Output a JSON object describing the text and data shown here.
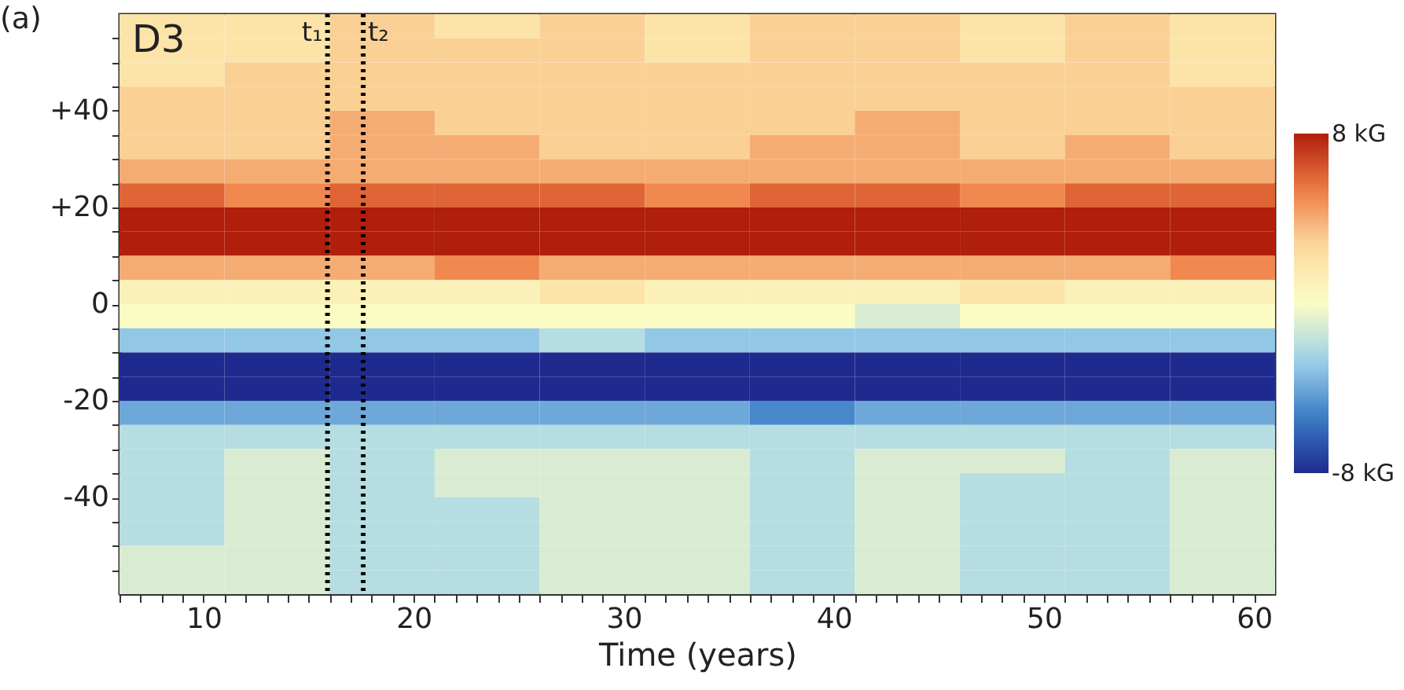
{
  "chart_data": {
    "type": "heatmap",
    "xlabel": "Time (years)",
    "annotations": [
      "(a)",
      "D3"
    ],
    "x": [
      8.5,
      13.5,
      18.5,
      23.5,
      28.5,
      33.5,
      38.5,
      43.5,
      48.5,
      53.5,
      58.5
    ],
    "y": [
      57.5,
      52.5,
      47.5,
      42.5,
      37.5,
      32.5,
      27.5,
      22.5,
      17.5,
      12.5,
      7.5,
      2.5,
      -2.5,
      -7.5,
      -12.5,
      -17.5,
      -22.5,
      -27.5,
      -32.5,
      -37.5,
      -42.5,
      -47.5,
      -52.5,
      -57.5
    ],
    "cells": [
      [
        2,
        2,
        3,
        2,
        3,
        2,
        3,
        3,
        2,
        3,
        2
      ],
      [
        2,
        2,
        3,
        3,
        3,
        2,
        3,
        3,
        2,
        3,
        2
      ],
      [
        2,
        3,
        3,
        3,
        3,
        3,
        3,
        3,
        3,
        3,
        2
      ],
      [
        3,
        3,
        3,
        3,
        3,
        3,
        3,
        3,
        3,
        3,
        3
      ],
      [
        3,
        3,
        4,
        3,
        3,
        3,
        3,
        4,
        3,
        3,
        3
      ],
      [
        3,
        3,
        4,
        4,
        3,
        3,
        4,
        4,
        3,
        4,
        3
      ],
      [
        4,
        4,
        4,
        4,
        4,
        4,
        4,
        4,
        4,
        4,
        4
      ],
      [
        6,
        5,
        6,
        6,
        6,
        5,
        6,
        6,
        5,
        6,
        6
      ],
      [
        8,
        8,
        8,
        8,
        8,
        8,
        8,
        8,
        8,
        8,
        8
      ],
      [
        8,
        8,
        8,
        8,
        8,
        8,
        8,
        8,
        8,
        8,
        8
      ],
      [
        4,
        4,
        4,
        5,
        4,
        4,
        4,
        4,
        4,
        4,
        5
      ],
      [
        1,
        1,
        1,
        1,
        2,
        1,
        1,
        1,
        2,
        1,
        1
      ],
      [
        0,
        0,
        0,
        0,
        0,
        0,
        0,
        -1,
        0,
        0,
        0
      ],
      [
        -3,
        -3,
        -3,
        -3,
        -2,
        -3,
        -3,
        -3,
        -3,
        -3,
        -3
      ],
      [
        -8,
        -8,
        -8,
        -8,
        -8,
        -8,
        -8,
        -8,
        -8,
        -8,
        -8
      ],
      [
        -8,
        -8,
        -8,
        -8,
        -8,
        -8,
        -8,
        -8,
        -8,
        -8,
        -8
      ],
      [
        -4,
        -4,
        -4,
        -4,
        -4,
        -4,
        -5,
        -4,
        -4,
        -4,
        -4
      ],
      [
        -2,
        -2,
        -2,
        -2,
        -2,
        -2,
        -2,
        -2,
        -2,
        -2,
        -2
      ],
      [
        -2,
        -1,
        -2,
        -1,
        -1,
        -1,
        -2,
        -1,
        -1,
        -2,
        -1
      ],
      [
        -2,
        -1,
        -2,
        -1,
        -1,
        -1,
        -2,
        -1,
        -2,
        -2,
        -1
      ],
      [
        -2,
        -1,
        -2,
        -2,
        -1,
        -1,
        -2,
        -1,
        -2,
        -2,
        -1
      ],
      [
        -2,
        -1,
        -2,
        -2,
        -1,
        -1,
        -2,
        -1,
        -2,
        -2,
        -1
      ],
      [
        -1,
        -1,
        -2,
        -2,
        -1,
        -1,
        -2,
        -1,
        -2,
        -2,
        -1
      ],
      [
        -1,
        -1,
        -2,
        -2,
        -1,
        -1,
        -2,
        -1,
        -2,
        -2,
        -1
      ]
    ],
    "colors": [
      "#1f2a8f",
      "#3a7dc6",
      "#9fd2ea",
      "#fbfcc4",
      "#fcdca0",
      "#ee7c45",
      "#b01e0c"
    ],
    "clim": [
      -8,
      8
    ],
    "cticks": [
      {
        "value": 8,
        "label": "8 kG"
      },
      {
        "value": -8,
        "label": "-8 kG"
      }
    ],
    "xlim": [
      6,
      61
    ],
    "ylim": [
      -60,
      60
    ],
    "xticks": [
      {
        "value": 6,
        "label": null
      },
      {
        "value": 7,
        "label": null
      },
      {
        "value": 8,
        "label": null
      },
      {
        "value": 9,
        "label": null
      },
      10,
      {
        "value": 11,
        "label": null
      },
      {
        "value": 12,
        "label": null
      },
      {
        "value": 13,
        "label": null
      },
      {
        "value": 14,
        "label": null
      },
      {
        "value": 15,
        "label": null
      },
      {
        "value": 16,
        "label": null
      },
      {
        "value": 17,
        "label": null
      },
      {
        "value": 18,
        "label": null
      },
      {
        "value": 19,
        "label": null
      },
      20,
      {
        "value": 21,
        "label": null
      },
      {
        "value": 22,
        "label": null
      },
      {
        "value": 23,
        "label": null
      },
      {
        "value": 24,
        "label": null
      },
      {
        "value": 25,
        "label": null
      },
      {
        "value": 26,
        "label": null
      },
      {
        "value": 27,
        "label": null
      },
      {
        "value": 28,
        "label": null
      },
      {
        "value": 29,
        "label": null
      },
      30,
      {
        "value": 31,
        "label": null
      },
      {
        "value": 32,
        "label": null
      },
      {
        "value": 33,
        "label": null
      },
      {
        "value": 34,
        "label": null
      },
      {
        "value": 35,
        "label": null
      },
      {
        "value": 36,
        "label": null
      },
      {
        "value": 37,
        "label": null
      },
      {
        "value": 38,
        "label": null
      },
      {
        "value": 39,
        "label": null
      },
      40,
      {
        "value": 41,
        "label": null
      },
      {
        "value": 42,
        "label": null
      },
      {
        "value": 43,
        "label": null
      },
      {
        "value": 44,
        "label": null
      },
      {
        "value": 45,
        "label": null
      },
      {
        "value": 46,
        "label": null
      },
      {
        "value": 47,
        "label": null
      },
      {
        "value": 48,
        "label": null
      },
      {
        "value": 49,
        "label": null
      },
      50,
      {
        "value": 51,
        "label": null
      },
      {
        "value": 52,
        "label": null
      },
      {
        "value": 53,
        "label": null
      },
      {
        "value": 54,
        "label": null
      },
      {
        "value": 55,
        "label": null
      },
      {
        "value": 56,
        "label": null
      },
      {
        "value": 57,
        "label": null
      },
      {
        "value": 58,
        "label": null
      },
      {
        "value": 59,
        "label": null
      },
      60
    ],
    "yticks": [
      {
        "value": -55,
        "label": null
      },
      {
        "value": -50,
        "label": null
      },
      {
        "value": -45,
        "label": null
      },
      -40,
      {
        "value": -35,
        "label": null
      },
      {
        "value": -30,
        "label": null
      },
      {
        "value": -25,
        "label": null
      },
      -20,
      {
        "value": -15,
        "label": null
      },
      {
        "value": -10,
        "label": null
      },
      {
        "value": -5,
        "label": null
      },
      0,
      {
        "value": 5,
        "label": null
      },
      {
        "value": 10,
        "label": null
      },
      {
        "value": 15,
        "label": null
      },
      {
        "value": 20,
        "label": "+20"
      },
      {
        "value": 25,
        "label": null
      },
      {
        "value": 30,
        "label": null
      },
      {
        "value": 35,
        "label": null
      },
      {
        "value": 40,
        "label": "+40"
      },
      {
        "value": 45,
        "label": null
      },
      {
        "value": 50,
        "label": null
      },
      {
        "value": 55,
        "label": null
      }
    ],
    "ref_lines": [
      {
        "axis": "x",
        "value": 15.9,
        "label": "t₁",
        "color": "#000000",
        "line_style": "dotted"
      },
      {
        "axis": "x",
        "value": 17.6,
        "label": "t₂",
        "color": "#000000",
        "line_style": "dotted"
      }
    ]
  }
}
